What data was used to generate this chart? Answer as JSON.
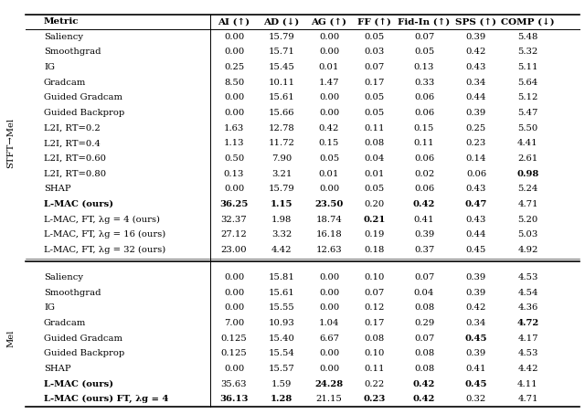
{
  "header": [
    "Metric",
    "AI (↑)",
    "AD (↓)",
    "AG (↑)",
    "FF (↑)",
    "Fid-In (↑)",
    "SPS (↑)",
    "COMP (↓)"
  ],
  "section1_label": "STFT→Mel",
  "section2_label": "Mel",
  "section1_rows": [
    {
      "metric": "Saliency",
      "vals": [
        "0.00",
        "15.79",
        "0.00",
        "0.05",
        "0.07",
        "0.39",
        "5.48"
      ],
      "bold_cols": [],
      "bold_metric": false
    },
    {
      "metric": "Smoothgrad",
      "vals": [
        "0.00",
        "15.71",
        "0.00",
        "0.03",
        "0.05",
        "0.42",
        "5.32"
      ],
      "bold_cols": [],
      "bold_metric": false
    },
    {
      "metric": "IG",
      "vals": [
        "0.25",
        "15.45",
        "0.01",
        "0.07",
        "0.13",
        "0.43",
        "5.11"
      ],
      "bold_cols": [],
      "bold_metric": false
    },
    {
      "metric": "Gradcam",
      "vals": [
        "8.50",
        "10.11",
        "1.47",
        "0.17",
        "0.33",
        "0.34",
        "5.64"
      ],
      "bold_cols": [],
      "bold_metric": false
    },
    {
      "metric": "Guided Gradcam",
      "vals": [
        "0.00",
        "15.61",
        "0.00",
        "0.05",
        "0.06",
        "0.44",
        "5.12"
      ],
      "bold_cols": [],
      "bold_metric": false
    },
    {
      "metric": "Guided Backprop",
      "vals": [
        "0.00",
        "15.66",
        "0.00",
        "0.05",
        "0.06",
        "0.39",
        "5.47"
      ],
      "bold_cols": [],
      "bold_metric": false
    },
    {
      "metric": "L2I, RT=0.2",
      "vals": [
        "1.63",
        "12.78",
        "0.42",
        "0.11",
        "0.15",
        "0.25",
        "5.50"
      ],
      "bold_cols": [],
      "bold_metric": false
    },
    {
      "metric": "L2I, RT=0.4",
      "vals": [
        "1.13",
        "11.72",
        "0.15",
        "0.08",
        "0.11",
        "0.23",
        "4.41"
      ],
      "bold_cols": [],
      "bold_metric": false
    },
    {
      "metric": "L2I, RT=0.60",
      "vals": [
        "0.50",
        "7.90",
        "0.05",
        "0.04",
        "0.06",
        "0.14",
        "2.61"
      ],
      "bold_cols": [],
      "bold_metric": false
    },
    {
      "metric": "L2I, RT=0.80",
      "vals": [
        "0.13",
        "3.21",
        "0.01",
        "0.01",
        "0.02",
        "0.06",
        "0.98"
      ],
      "bold_cols": [
        6
      ],
      "bold_metric": false
    },
    {
      "metric": "SHAP",
      "vals": [
        "0.00",
        "15.79",
        "0.00",
        "0.05",
        "0.06",
        "0.43",
        "5.24"
      ],
      "bold_cols": [],
      "bold_metric": false
    },
    {
      "metric": "L-MAC (ours)",
      "vals": [
        "36.25",
        "1.15",
        "23.50",
        "0.20",
        "0.42",
        "0.47",
        "4.71"
      ],
      "bold_cols": [
        0,
        1,
        2,
        4,
        5
      ],
      "bold_metric": true
    },
    {
      "metric": "L-MAC, FT, λg = 4 (ours)",
      "vals": [
        "32.37",
        "1.98",
        "18.74",
        "0.21",
        "0.41",
        "0.43",
        "5.20"
      ],
      "bold_cols": [
        3
      ],
      "bold_metric": false
    },
    {
      "metric": "L-MAC, FT, λg = 16 (ours)",
      "vals": [
        "27.12",
        "3.32",
        "16.18",
        "0.19",
        "0.39",
        "0.44",
        "5.03"
      ],
      "bold_cols": [],
      "bold_metric": false
    },
    {
      "metric": "L-MAC, FT, λg = 32 (ours)",
      "vals": [
        "23.00",
        "4.42",
        "12.63",
        "0.18",
        "0.37",
        "0.45",
        "4.92"
      ],
      "bold_cols": [],
      "bold_metric": false
    }
  ],
  "section2_rows": [
    {
      "metric": "Saliency",
      "vals": [
        "0.00",
        "15.81",
        "0.00",
        "0.10",
        "0.07",
        "0.39",
        "4.53"
      ],
      "bold_cols": [],
      "bold_metric": false
    },
    {
      "metric": "Smoothgrad",
      "vals": [
        "0.00",
        "15.61",
        "0.00",
        "0.07",
        "0.04",
        "0.39",
        "4.54"
      ],
      "bold_cols": [],
      "bold_metric": false
    },
    {
      "metric": "IG",
      "vals": [
        "0.00",
        "15.55",
        "0.00",
        "0.12",
        "0.08",
        "0.42",
        "4.36"
      ],
      "bold_cols": [],
      "bold_metric": false
    },
    {
      "metric": "Gradcam",
      "vals": [
        "7.00",
        "10.93",
        "1.04",
        "0.17",
        "0.29",
        "0.34",
        "4.72"
      ],
      "bold_cols": [
        6
      ],
      "bold_metric": false
    },
    {
      "metric": "Guided Gradcam",
      "vals": [
        "0.125",
        "15.40",
        "6.67",
        "0.08",
        "0.07",
        "0.45",
        "4.17"
      ],
      "bold_cols": [
        5
      ],
      "bold_metric": false
    },
    {
      "metric": "Guided Backprop",
      "vals": [
        "0.125",
        "15.54",
        "0.00",
        "0.10",
        "0.08",
        "0.39",
        "4.53"
      ],
      "bold_cols": [],
      "bold_metric": false
    },
    {
      "metric": "SHAP",
      "vals": [
        "0.00",
        "15.57",
        "0.00",
        "0.11",
        "0.08",
        "0.41",
        "4.42"
      ],
      "bold_cols": [],
      "bold_metric": false
    },
    {
      "metric": "L-MAC (ours)",
      "vals": [
        "35.63",
        "1.59",
        "24.28",
        "0.22",
        "0.42",
        "0.45",
        "4.11"
      ],
      "bold_cols": [
        2,
        4,
        5
      ],
      "bold_metric": true
    },
    {
      "metric": "L-MAC (ours) FT, λg = 4",
      "vals": [
        "36.13",
        "1.28",
        "21.15",
        "0.23",
        "0.42",
        "0.32",
        "4.71"
      ],
      "bold_cols": [
        0,
        1,
        3,
        4
      ],
      "bold_metric": true
    }
  ],
  "font_size": 7.2,
  "header_font_size": 7.5,
  "bg_color": "#ffffff"
}
